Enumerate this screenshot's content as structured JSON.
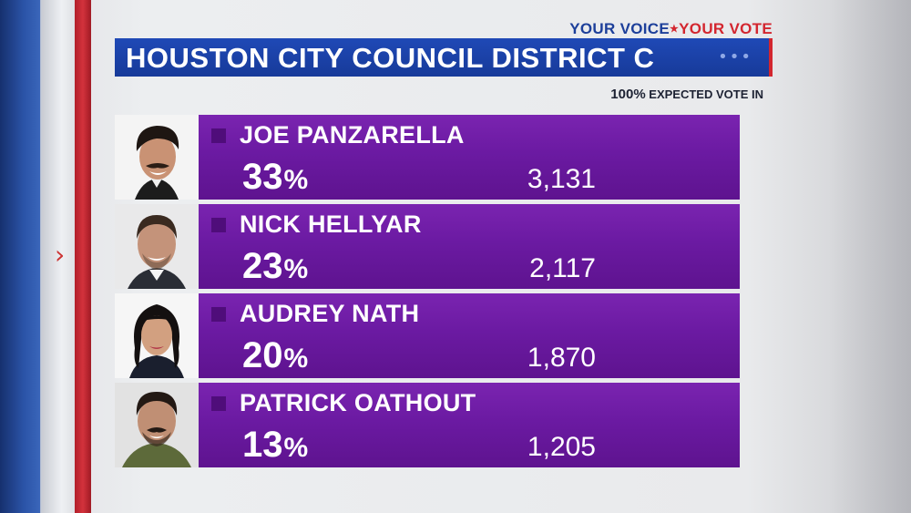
{
  "header": {
    "slogan_part1": "YOUR VOICE",
    "slogan_part2": "YOUR VOTE",
    "title": "HOUSTON CITY COUNCIL DISTRICT C",
    "expected_pct": "100%",
    "expected_label": "EXPECTED VOTE IN"
  },
  "candidates": [
    {
      "name": "JOE PANZARELLA",
      "pct": "33",
      "votes": "3,131"
    },
    {
      "name": "NICK HELLYAR",
      "pct": "23",
      "votes": "2,117"
    },
    {
      "name": "AUDREY NATH",
      "pct": "20",
      "votes": "1,870"
    },
    {
      "name": "PATRICK OATHOUT",
      "pct": "13",
      "votes": "1,205"
    }
  ],
  "colors": {
    "bar": "#6b1aa2",
    "title_bar": "#1f49b6",
    "accent_red": "#d3262f"
  }
}
